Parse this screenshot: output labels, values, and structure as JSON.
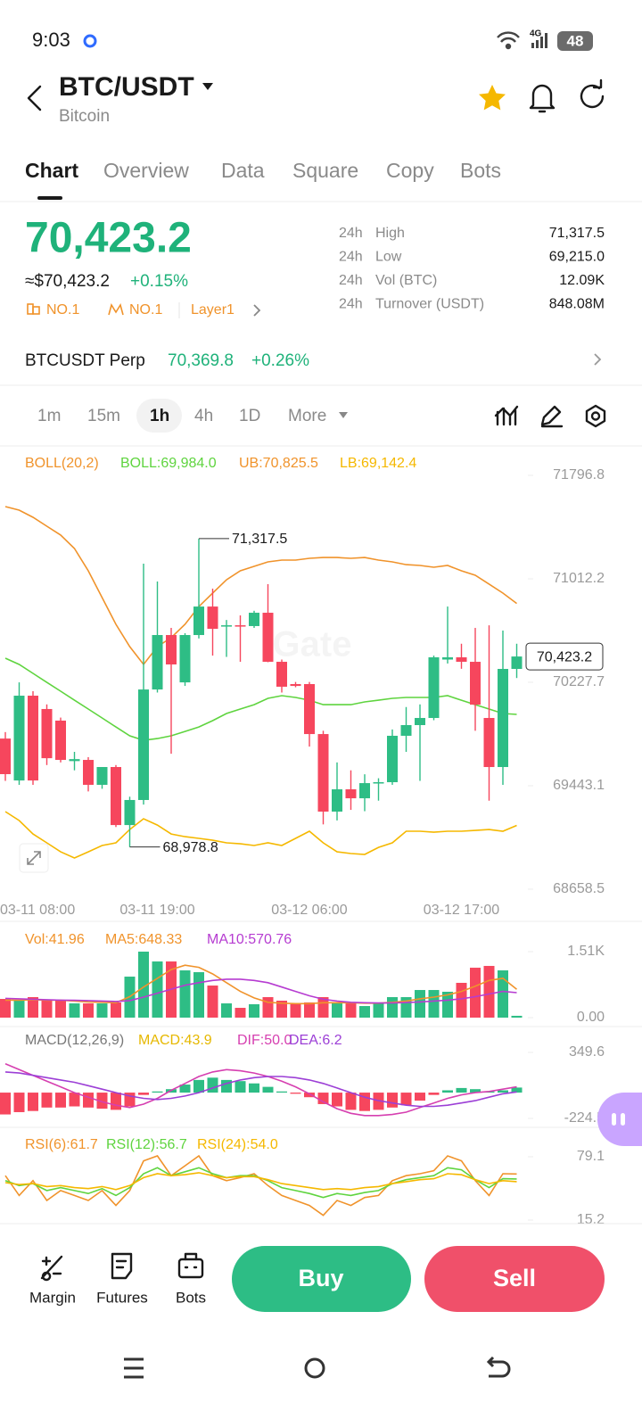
{
  "status_bar": {
    "time": "9:03",
    "network": "4G",
    "battery": "48"
  },
  "header": {
    "pair": "BTC/USDT",
    "name": "Bitcoin"
  },
  "tabs": [
    "Chart",
    "Overview",
    "Data",
    "Square",
    "Copy",
    "Bots"
  ],
  "price": {
    "last": "70,423.2",
    "usd": "≈$70,423.2",
    "change": "+0.15%",
    "tags": [
      "NO.1",
      "NO.1",
      "Layer1"
    ]
  },
  "stats": [
    {
      "period": "24h",
      "label": "High",
      "value": "71,317.5"
    },
    {
      "period": "24h",
      "label": "Low",
      "value": "69,215.0"
    },
    {
      "period": "24h",
      "label": "Vol (BTC)",
      "value": "12.09K"
    },
    {
      "period": "24h",
      "label": "Turnover (USDT)",
      "value": "848.08M"
    }
  ],
  "perp": {
    "name": "BTCUSDT Perp",
    "price": "70,369.8",
    "change": "+0.26%"
  },
  "intervals": [
    "1m",
    "15m",
    "1h",
    "4h",
    "1D",
    "More"
  ],
  "watermark": "Gate",
  "chart_data": [
    {
      "type": "candlestick",
      "indicator": "BOLL(20,2)",
      "categories": [
        null,
        null,
        null,
        null,
        null,
        null,
        null,
        null,
        null,
        null,
        null,
        "03-11 19:00",
        null,
        null,
        null,
        null,
        null,
        null,
        null,
        null,
        null,
        null,
        "03-12 06:00",
        null,
        null,
        null,
        null,
        null,
        null,
        null,
        null,
        null,
        null,
        "03-12 17:00",
        null,
        null,
        null,
        null
      ],
      "x_first_label": "03-11 08:00",
      "open": [
        69801,
        69483,
        70126,
        70025,
        69937,
        69630,
        69639,
        69450,
        69585,
        69145,
        69335,
        70173,
        70586,
        70227,
        70586,
        70802,
        70650,
        70660,
        70654,
        70755,
        70383,
        70214,
        70214,
        69835,
        69247,
        69416,
        69348,
        69460,
        69470,
        69822,
        69903,
        69957,
        70400,
        70417,
        70383,
        69957,
        69585,
        70329
      ],
      "high": [
        69850,
        70227,
        70160,
        70060,
        69960,
        69700,
        69660,
        69585,
        69600,
        69360,
        71127,
        70992,
        70640,
        70600,
        71317.5,
        70938,
        70700,
        70735,
        70770,
        70972,
        70400,
        70230,
        70230,
        69860,
        69620,
        69560,
        69530,
        69500,
        69870,
        70040,
        70060,
        70430,
        70802,
        70520,
        70640,
        70660,
        70620,
        70520
      ],
      "low": [
        69480,
        69450,
        69450,
        69600,
        69620,
        69560,
        69400,
        69420,
        69130,
        68978.8,
        69300,
        70150,
        69686,
        70200,
        70560,
        70430,
        70420,
        70383,
        70640,
        70380,
        70150,
        70190,
        69740,
        69150,
        69180,
        69260,
        69250,
        69330,
        69450,
        69700,
        69480,
        69940,
        70370,
        70330,
        69860,
        69330,
        69450,
        70260
      ],
      "close": [
        69531,
        70126,
        69483,
        69652,
        69639,
        69645,
        69450,
        69585,
        69145,
        69335,
        70173,
        70586,
        70363,
        70586,
        70802,
        70633,
        70660,
        70650,
        70755,
        70383,
        70194,
        70200,
        69835,
        69247,
        69416,
        69348,
        69463,
        69470,
        69822,
        69903,
        69957,
        70417,
        70417,
        70383,
        70058,
        69585,
        70329,
        70423.2
      ],
      "up_color": "#2ebd85",
      "down_color": "#f6465d",
      "series": [
        {
          "name": "BOLL:69,984.0",
          "color": "#5fd43f",
          "values": [
            70410,
            70363,
            70295,
            70227,
            70160,
            70092,
            70025,
            69957,
            69889,
            69822,
            69788,
            69801,
            69822,
            69855,
            69889,
            69937,
            69991,
            70025,
            70058,
            70106,
            70126,
            70113,
            70092,
            70058,
            70058,
            70058,
            70079,
            70092,
            70106,
            70113,
            70113,
            70113,
            70126,
            70092,
            70058,
            70025,
            69991,
            69984.0
          ]
        },
        {
          "name": "UB:70,825.5",
          "color": "#f0932b",
          "values": [
            71560,
            71533,
            71479,
            71411,
            71344,
            71242,
            71073,
            70870,
            70667,
            70498,
            70363,
            70498,
            70566,
            70667,
            70802,
            70904,
            71005,
            71073,
            71107,
            71141,
            71154,
            71154,
            71168,
            71174,
            71174,
            71168,
            71174,
            71154,
            71141,
            71120,
            71114,
            71100,
            71114,
            71073,
            71039,
            70972,
            70904,
            70825.5
          ]
        },
        {
          "name": "LB:69,142.4",
          "color": "#f5b800",
          "values": [
            69247,
            69179,
            69077,
            69010,
            68942,
            68895,
            68942,
            68990,
            69010,
            69111,
            69193,
            69145,
            69077,
            69057,
            69044,
            69030,
            69010,
            69003,
            68990,
            69010,
            68990,
            69044,
            69098,
            69010,
            68942,
            68929,
            68922,
            68976,
            69010,
            69098,
            69098,
            69091,
            69098,
            69098,
            69104,
            69111,
            69098,
            69142.4
          ]
        }
      ],
      "ylim": [
        68658.5,
        71796.8
      ],
      "yticks": [
        71796.8,
        71012.2,
        70227.7,
        69443.1,
        68658.5
      ],
      "grid": false,
      "annotations": [
        {
          "value": 71317.5,
          "label": "71,317.5"
        },
        {
          "value": 68978.8,
          "label": "68,978.8"
        }
      ],
      "last_price": {
        "value": 70423.2,
        "label": "70,423.2"
      }
    },
    {
      "type": "volume",
      "name": "Vol:41.96",
      "color": "#f0932b",
      "values": [
        428,
        388,
        469,
        388,
        388,
        326,
        326,
        326,
        347,
        938,
        1510,
        1285,
        1285,
        1081,
        1040,
        734,
        326,
        224,
        306,
        469,
        388,
        306,
        347,
        469,
        347,
        347,
        265,
        347,
        469,
        469,
        632,
        632,
        592,
        796,
        1142,
        1183,
        1081,
        41.96
      ],
      "series": [
        {
          "name": "MA5:648.33",
          "color": "#f0932b",
          "values": [
            400,
            400,
            410,
            400,
            400,
            380,
            360,
            350,
            340,
            480,
            700,
            900,
            1100,
            1200,
            1150,
            1000,
            800,
            600,
            450,
            350,
            330,
            320,
            320,
            340,
            340,
            340,
            330,
            330,
            350,
            380,
            430,
            470,
            520,
            600,
            720,
            850,
            900,
            648.33
          ]
        },
        {
          "name": "MA10:570.76",
          "color": "#b63cd1",
          "values": [
            440,
            430,
            420,
            410,
            400,
            395,
            390,
            380,
            370,
            390,
            470,
            560,
            650,
            740,
            800,
            850,
            880,
            880,
            850,
            800,
            700,
            600,
            500,
            420,
            380,
            350,
            340,
            335,
            335,
            345,
            360,
            380,
            400,
            430,
            480,
            540,
            600,
            570.76
          ]
        }
      ],
      "ylim": [
        0,
        1510
      ],
      "yticks": [
        {
          "value": 1510,
          "label": "1.51K"
        },
        {
          "value": 0,
          "label": "0.00"
        }
      ]
    },
    {
      "type": "macd",
      "indicator": "MACD(12,26,9)",
      "name": "MACD:43.9",
      "color": "#e6b800",
      "values": [
        -190,
        -170,
        -160,
        -130,
        -130,
        -120,
        -130,
        -140,
        -150,
        -120,
        -20,
        10,
        30,
        70,
        110,
        130,
        110,
        100,
        80,
        50,
        10,
        -10,
        -40,
        -100,
        -120,
        -150,
        -160,
        -150,
        -130,
        -110,
        -70,
        -20,
        20,
        40,
        30,
        10,
        20,
        43.9
      ],
      "series": [
        {
          "name": "DIF:50.0",
          "color": "#d63fb0",
          "values": [
            250,
            200,
            150,
            100,
            50,
            0,
            -40,
            -80,
            -110,
            -130,
            -100,
            -50,
            20,
            80,
            140,
            180,
            200,
            190,
            170,
            140,
            100,
            50,
            -10,
            -80,
            -140,
            -180,
            -200,
            -200,
            -190,
            -170,
            -130,
            -90,
            -50,
            -20,
            0,
            10,
            30,
            50.0
          ]
        },
        {
          "name": "DEA:6.2",
          "color": "#9c3fd6",
          "values": [
            180,
            170,
            150,
            130,
            110,
            90,
            60,
            30,
            0,
            -30,
            -50,
            -60,
            -50,
            -30,
            0,
            40,
            80,
            110,
            130,
            140,
            140,
            130,
            110,
            80,
            40,
            0,
            -40,
            -70,
            -90,
            -110,
            -120,
            -120,
            -110,
            -90,
            -70,
            -40,
            -10,
            6.2
          ]
        }
      ],
      "ylim": [
        -224.5,
        349.6
      ],
      "yticks": [
        349.6,
        -224.5
      ]
    },
    {
      "type": "rsi",
      "series": [
        {
          "name": "RSI(6):61.7",
          "color": "#f0932b",
          "values": [
            60,
            40,
            55,
            35,
            45,
            40,
            35,
            45,
            30,
            45,
            75,
            80,
            60,
            70,
            80,
            60,
            55,
            58,
            62,
            50,
            40,
            35,
            30,
            20,
            35,
            30,
            38,
            40,
            55,
            60,
            62,
            65,
            80,
            75,
            55,
            40,
            62,
            61.7
          ]
        },
        {
          "name": "RSI(12):56.7",
          "color": "#5fd43f",
          "values": [
            55,
            50,
            52,
            45,
            48,
            45,
            42,
            47,
            40,
            48,
            62,
            68,
            60,
            64,
            68,
            62,
            58,
            60,
            60,
            55,
            48,
            45,
            42,
            38,
            42,
            40,
            43,
            45,
            52,
            56,
            58,
            60,
            68,
            66,
            56,
            48,
            57,
            56.7
          ]
        },
        {
          "name": "RSI(24):54.0",
          "color": "#f5b800",
          "values": [
            53,
            51,
            52,
            49,
            50,
            48,
            47,
            49,
            46,
            50,
            58,
            62,
            60,
            61,
            63,
            60,
            58,
            59,
            59,
            56,
            52,
            50,
            48,
            46,
            47,
            46,
            48,
            49,
            52,
            54,
            56,
            57,
            62,
            61,
            56,
            52,
            55,
            54.0
          ]
        }
      ],
      "ylim": [
        15.2,
        79.1
      ],
      "yticks": [
        79.1,
        15.2
      ]
    }
  ],
  "bottom_bar": {
    "tools": [
      "Margin",
      "Futures",
      "Bots"
    ],
    "buy": "Buy",
    "sell": "Sell"
  }
}
